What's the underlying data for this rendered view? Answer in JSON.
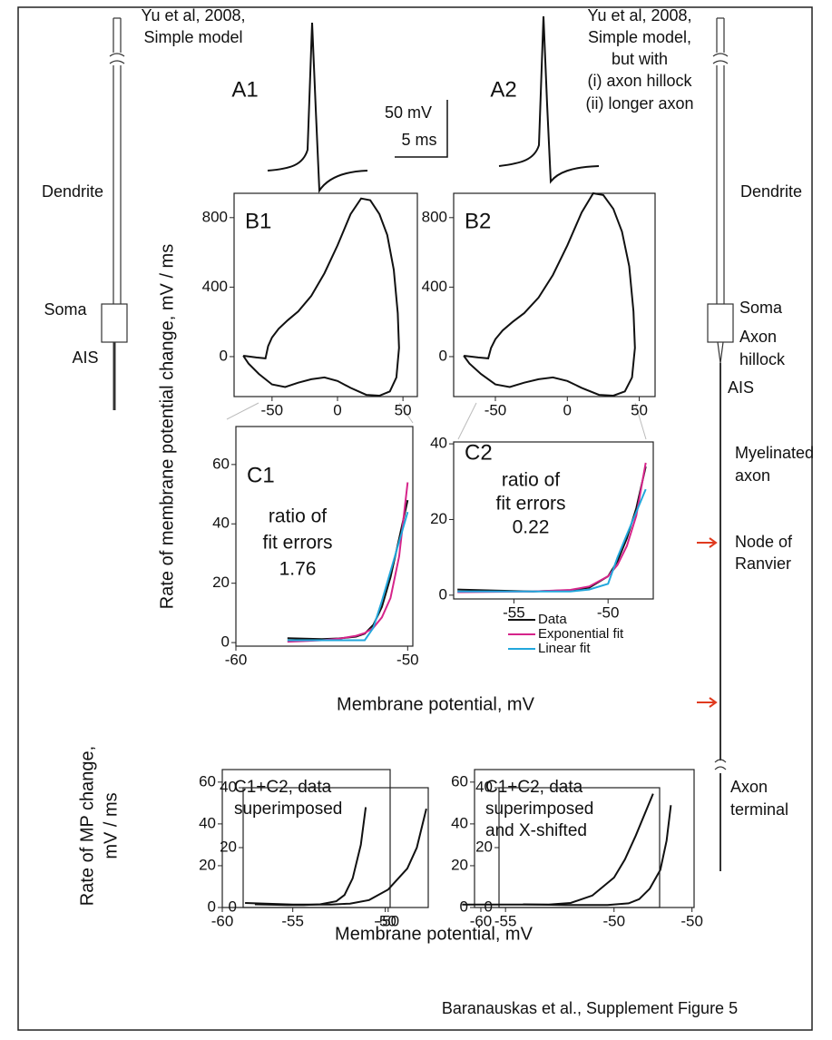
{
  "figure": {
    "footer": "Baranauskas et al., Supplement Figure 5",
    "a1": {
      "label": "A1",
      "lines": [
        "Yu et al, 2008,",
        "Simple model"
      ]
    },
    "a2": {
      "label": "A2",
      "lines": [
        "Yu et al, 2008,",
        "Simple model,",
        "but with",
        "(i) axon hillock",
        "(ii) longer axon"
      ]
    },
    "scale_bar": [
      "50 mV",
      "5 ms"
    ],
    "left_neuron": [
      "Dendrite",
      "Soma",
      "AIS"
    ],
    "right_neuron": [
      "Dendrite",
      "Soma",
      "Axon",
      "hillock",
      "AIS",
      "Myelinated",
      "axon",
      "Node of",
      "Ranvier",
      "Axon",
      "terminal"
    ],
    "y_label_top": "Rate of membrane potential change,  mV / ms",
    "x_label_top": "Membrane potential, mV",
    "y_label_bottom": [
      "Rate of MP change,",
      "mV / ms"
    ],
    "x_label_bottom": "Membrane potential, mV"
  },
  "chart_data": [
    {
      "type": "line",
      "label": "B1",
      "xlim": [
        -79,
        61
      ],
      "ylim": [
        -230,
        940
      ],
      "xticks": [
        -50,
        0,
        50
      ],
      "yticks": [
        0,
        400,
        800
      ],
      "series": [
        {
          "color": "#111111",
          "x": [
            -72,
            -62,
            -55,
            -53,
            -50,
            -45,
            -38,
            -30,
            -20,
            -10,
            0,
            10,
            18,
            25,
            32,
            38,
            43,
            46,
            47,
            45,
            40,
            32,
            22,
            10,
            0,
            -10,
            -20,
            -30,
            -40,
            -50,
            -60,
            -68,
            -72
          ],
          "values": [
            5,
            -5,
            -10,
            60,
            110,
            160,
            210,
            260,
            350,
            480,
            640,
            820,
            910,
            900,
            820,
            700,
            500,
            250,
            50,
            -120,
            -200,
            -225,
            -220,
            -180,
            -140,
            -120,
            -130,
            -150,
            -175,
            -160,
            -100,
            -40,
            5
          ]
        }
      ]
    },
    {
      "type": "line",
      "label": "B2",
      "xlim": [
        -79,
        61
      ],
      "ylim": [
        -230,
        940
      ],
      "xticks": [
        -50,
        0,
        50
      ],
      "yticks": [
        0,
        400,
        800
      ],
      "series": [
        {
          "color": "#111111",
          "x": [
            -72,
            -62,
            -55,
            -53,
            -50,
            -45,
            -38,
            -30,
            -20,
            -10,
            0,
            10,
            18,
            25,
            32,
            38,
            43,
            46,
            47,
            45,
            40,
            32,
            22,
            10,
            0,
            -10,
            -20,
            -30,
            -40,
            -50,
            -60,
            -68,
            -72
          ],
          "values": [
            5,
            -5,
            -10,
            50,
            100,
            150,
            200,
            250,
            340,
            470,
            640,
            830,
            940,
            930,
            850,
            720,
            520,
            260,
            50,
            -120,
            -200,
            -225,
            -220,
            -180,
            -140,
            -120,
            -130,
            -150,
            -175,
            -160,
            -100,
            -40,
            5
          ]
        }
      ]
    },
    {
      "type": "line",
      "label": "C1",
      "notes": [
        "ratio of",
        "fit errors",
        "1.76"
      ],
      "xlim": [
        -60,
        -49.7
      ],
      "ylim": [
        -1.2,
        72.8
      ],
      "xticks": [
        -60,
        -50
      ],
      "yticks": [
        0,
        20,
        40,
        60
      ],
      "x": [
        -57,
        -56,
        -55,
        -54,
        -53,
        -52.5,
        -52,
        -51.5,
        -51,
        -50.5,
        -50
      ],
      "series": [
        {
          "color": "#111111",
          "values": [
            1.5,
            1.3,
            1.2,
            1.4,
            2,
            3,
            6,
            12,
            22,
            35,
            48
          ]
        },
        {
          "color": "#d6248a",
          "values": [
            0.3,
            0.5,
            0.8,
            1.3,
            2.3,
            3.2,
            5,
            8.5,
            15,
            29,
            54
          ]
        },
        {
          "color": "#22a7dc",
          "values": [
            0.8,
            0.8,
            0.8,
            0.8,
            0.8,
            0.8,
            5,
            14,
            24,
            34,
            44
          ]
        }
      ]
    },
    {
      "type": "line",
      "label": "C2",
      "notes": [
        "ratio of",
        "fit errors",
        "0.22"
      ],
      "xlim": [
        -58.2,
        -47.6
      ],
      "ylim": [
        -1,
        40.5
      ],
      "xticks": [
        -55,
        -50
      ],
      "yticks": [
        0,
        20,
        40
      ],
      "x": [
        -58,
        -56,
        -54,
        -52,
        -51,
        -50,
        -49.5,
        -49,
        -48.5,
        -48
      ],
      "series": [
        {
          "name": "Data",
          "color": "#111111",
          "values": [
            1.5,
            1.2,
            1,
            1.3,
            2,
            5,
            9,
            15,
            23,
            34
          ]
        },
        {
          "name": "Exponential fit",
          "color": "#d6248a",
          "values": [
            0.8,
            0.9,
            1,
            1.4,
            2.3,
            5,
            8,
            13,
            21,
            35
          ]
        },
        {
          "name": "Linear fit",
          "color": "#22a7dc",
          "values": [
            1,
            1,
            1,
            1,
            1.5,
            3,
            10,
            16,
            22,
            28
          ]
        }
      ]
    },
    {
      "type": "line",
      "title_lines": [
        "C1+C2,  data",
        "superimposed"
      ],
      "xlim": [
        -60,
        -49.7
      ],
      "ylim": [
        0,
        66
      ],
      "xticks": [
        -60,
        -50
      ],
      "yticks": [
        0,
        20,
        40,
        60
      ],
      "series": [
        {
          "color": "#111111",
          "x": [
            -58,
            -56,
            -55,
            -54,
            -53,
            -52.5,
            -52,
            -51.5,
            -51.2
          ],
          "values": [
            1.5,
            1.2,
            1.2,
            1.5,
            3,
            6,
            14,
            30,
            48
          ]
        }
      ]
    },
    {
      "type": "line",
      "xlim": [
        -57.6,
        -47.9
      ],
      "ylim": [
        0,
        40
      ],
      "xticks": [
        -55,
        -50
      ],
      "yticks": [
        0,
        20,
        40
      ],
      "series": [
        {
          "color": "#111111",
          "x": [
            -57.5,
            -55,
            -53,
            -52,
            -51,
            -50,
            -49,
            -48.5,
            -48
          ],
          "values": [
            1.5,
            1,
            1,
            1.3,
            2.5,
            6,
            13,
            20,
            33
          ]
        }
      ]
    },
    {
      "type": "line",
      "title_lines": [
        "C1+C2, data",
        "superimposed",
        "and X-shifted"
      ],
      "xlim": [
        -60.3,
        -49.9
      ],
      "ylim": [
        0,
        66
      ],
      "xticks": [
        -60,
        -50
      ],
      "yticks": [
        0,
        20,
        40,
        60
      ],
      "series": [
        {
          "color": "#111111",
          "x": [
            -58,
            -56,
            -54,
            -53,
            -52.5,
            -52,
            -51.5,
            -51.2,
            -51
          ],
          "values": [
            1.5,
            1.2,
            1.2,
            2,
            4,
            9,
            18,
            32,
            49
          ]
        }
      ]
    },
    {
      "type": "line",
      "xlim": [
        -55.3,
        -47.9
      ],
      "ylim": [
        0,
        40
      ],
      "xticks": [
        -55,
        -50
      ],
      "yticks": [
        0,
        20,
        40
      ],
      "series": [
        {
          "color": "#111111",
          "x": [
            -57,
            -55,
            -53,
            -52,
            -51,
            -50,
            -49.5,
            -49,
            -48.2
          ],
          "values": [
            1,
            1,
            1,
            1.5,
            4,
            10,
            16,
            24,
            38
          ]
        }
      ]
    }
  ]
}
